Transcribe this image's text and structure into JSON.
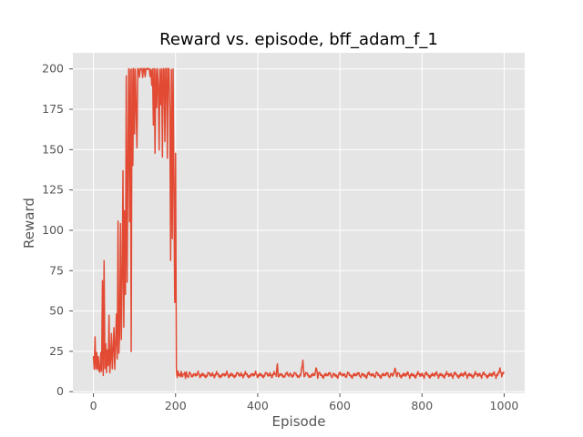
{
  "chart_data": {
    "type": "line",
    "title": "Reward vs. episode, bff_adam_f_1",
    "xlabel": "Episode",
    "ylabel": "Reward",
    "xlim": [
      -50,
      1050
    ],
    "ylim": [
      -1,
      210
    ],
    "grid": true,
    "x_ticks": [
      0,
      200,
      400,
      600,
      800,
      1000
    ],
    "y_ticks": [
      0,
      25,
      50,
      75,
      100,
      125,
      150,
      175,
      200
    ],
    "colors": {
      "line": "#E24A33",
      "plot_background": "#E5E5E5",
      "grid": "#FFFFFF",
      "tick_text": "#555555"
    },
    "series": [
      {
        "x_range": [
          0,
          999
        ],
        "keypoints": [
          [
            0,
            22
          ],
          [
            2,
            14
          ],
          [
            4,
            34
          ],
          [
            6,
            14
          ],
          [
            8,
            24
          ],
          [
            10,
            14
          ],
          [
            12,
            22
          ],
          [
            14,
            13
          ],
          [
            16,
            12
          ],
          [
            18,
            24
          ],
          [
            20,
            13
          ],
          [
            22,
            69
          ],
          [
            24,
            10
          ],
          [
            26,
            81
          ],
          [
            28,
            14
          ],
          [
            30,
            30
          ],
          [
            32,
            12
          ],
          [
            34,
            26
          ],
          [
            36,
            16
          ],
          [
            38,
            47
          ],
          [
            40,
            12
          ],
          [
            42,
            20
          ],
          [
            44,
            36
          ],
          [
            46,
            14
          ],
          [
            48,
            26
          ],
          [
            50,
            40
          ],
          [
            52,
            14
          ],
          [
            54,
            30
          ],
          [
            56,
            48
          ],
          [
            58,
            20
          ],
          [
            60,
            106
          ],
          [
            62,
            24
          ],
          [
            64,
            36
          ],
          [
            66,
            104
          ],
          [
            68,
            32
          ],
          [
            70,
            70
          ],
          [
            72,
            137
          ],
          [
            74,
            40
          ],
          [
            76,
            112
          ],
          [
            78,
            60
          ],
          [
            80,
            196
          ],
          [
            82,
            68
          ],
          [
            84,
            140
          ],
          [
            86,
            200
          ],
          [
            88,
            105
          ],
          [
            90,
            200
          ],
          [
            92,
            25
          ],
          [
            94,
            200
          ],
          [
            96,
            140
          ],
          [
            98,
            200
          ],
          [
            100,
            160
          ],
          [
            102,
            200
          ],
          [
            104,
            175
          ],
          [
            106,
            151
          ],
          [
            108,
            200
          ],
          [
            110,
            200
          ],
          [
            112,
            195
          ],
          [
            114,
            200
          ],
          [
            116,
            200
          ],
          [
            118,
            200
          ],
          [
            120,
            195
          ],
          [
            122,
            200
          ],
          [
            124,
            200
          ],
          [
            126,
            195
          ],
          [
            128,
            200
          ],
          [
            130,
            200
          ],
          [
            132,
            200
          ],
          [
            134,
            200
          ],
          [
            136,
            200
          ],
          [
            138,
            195
          ],
          [
            140,
            200
          ],
          [
            142,
            190
          ],
          [
            144,
            200
          ],
          [
            146,
            165
          ],
          [
            148,
            200
          ],
          [
            150,
            148
          ],
          [
            152,
            200
          ],
          [
            154,
            176
          ],
          [
            156,
            200
          ],
          [
            158,
            190
          ],
          [
            160,
            150
          ],
          [
            162,
            200
          ],
          [
            164,
            178
          ],
          [
            166,
            200
          ],
          [
            168,
            145
          ],
          [
            170,
            200
          ],
          [
            172,
            200
          ],
          [
            174,
            155
          ],
          [
            176,
            200
          ],
          [
            178,
            200
          ],
          [
            180,
            145
          ],
          [
            182,
            200
          ],
          [
            184,
            200
          ],
          [
            186,
            175
          ],
          [
            188,
            81
          ],
          [
            190,
            200
          ],
          [
            192,
            95
          ],
          [
            194,
            200
          ],
          [
            196,
            130
          ],
          [
            198,
            55
          ],
          [
            200,
            148
          ],
          [
            202,
            14
          ],
          [
            204,
            9
          ],
          [
            206,
            12
          ],
          [
            208,
            10
          ],
          [
            210,
            11
          ],
          [
            212,
            9
          ],
          [
            214,
            13
          ],
          [
            216,
            9
          ],
          [
            218,
            11
          ],
          [
            220,
            10
          ],
          [
            222,
            12
          ],
          [
            224,
            9
          ],
          [
            226,
            12
          ],
          [
            228,
            10
          ],
          [
            230,
            9
          ],
          [
            235,
            12
          ],
          [
            240,
            9
          ],
          [
            245,
            11
          ],
          [
            250,
            10
          ],
          [
            255,
            12
          ],
          [
            260,
            9
          ],
          [
            265,
            11
          ],
          [
            270,
            10
          ],
          [
            275,
            9
          ],
          [
            280,
            12
          ],
          [
            285,
            10
          ],
          [
            290,
            11
          ],
          [
            295,
            9
          ],
          [
            300,
            12
          ],
          [
            305,
            10
          ],
          [
            310,
            9
          ],
          [
            315,
            11
          ],
          [
            320,
            10
          ],
          [
            325,
            12
          ],
          [
            330,
            9
          ],
          [
            335,
            11
          ],
          [
            340,
            10
          ],
          [
            345,
            9
          ],
          [
            350,
            12
          ],
          [
            355,
            10
          ],
          [
            360,
            11
          ],
          [
            365,
            9
          ],
          [
            370,
            12
          ],
          [
            375,
            10
          ],
          [
            380,
            9
          ],
          [
            385,
            11
          ],
          [
            390,
            10
          ],
          [
            395,
            12
          ],
          [
            400,
            9
          ],
          [
            405,
            11
          ],
          [
            410,
            10
          ],
          [
            415,
            9
          ],
          [
            420,
            12
          ],
          [
            425,
            10
          ],
          [
            430,
            11
          ],
          [
            435,
            9
          ],
          [
            440,
            12
          ],
          [
            445,
            10
          ],
          [
            448,
            18
          ],
          [
            450,
            9
          ],
          [
            455,
            11
          ],
          [
            460,
            10
          ],
          [
            465,
            9
          ],
          [
            470,
            12
          ],
          [
            475,
            10
          ],
          [
            480,
            11
          ],
          [
            485,
            9
          ],
          [
            490,
            12
          ],
          [
            495,
            10
          ],
          [
            500,
            9
          ],
          [
            505,
            11
          ],
          [
            510,
            19
          ],
          [
            513,
            9
          ],
          [
            518,
            12
          ],
          [
            523,
            10
          ],
          [
            528,
            9
          ],
          [
            533,
            11
          ],
          [
            538,
            10
          ],
          [
            543,
            15
          ],
          [
            546,
            9
          ],
          [
            550,
            12
          ],
          [
            555,
            10
          ],
          [
            560,
            9
          ],
          [
            565,
            11
          ],
          [
            570,
            10
          ],
          [
            575,
            12
          ],
          [
            580,
            9
          ],
          [
            585,
            11
          ],
          [
            590,
            10
          ],
          [
            595,
            9
          ],
          [
            600,
            12
          ],
          [
            605,
            10
          ],
          [
            610,
            11
          ],
          [
            615,
            9
          ],
          [
            620,
            12
          ],
          [
            625,
            10
          ],
          [
            630,
            9
          ],
          [
            635,
            11
          ],
          [
            640,
            10
          ],
          [
            645,
            12
          ],
          [
            650,
            9
          ],
          [
            655,
            11
          ],
          [
            660,
            10
          ],
          [
            665,
            9
          ],
          [
            670,
            12
          ],
          [
            675,
            10
          ],
          [
            680,
            11
          ],
          [
            685,
            9
          ],
          [
            690,
            12
          ],
          [
            695,
            10
          ],
          [
            700,
            9
          ],
          [
            705,
            11
          ],
          [
            710,
            10
          ],
          [
            715,
            12
          ],
          [
            720,
            9
          ],
          [
            725,
            11
          ],
          [
            730,
            10
          ],
          [
            735,
            15
          ],
          [
            738,
            9
          ],
          [
            742,
            12
          ],
          [
            746,
            10
          ],
          [
            750,
            9
          ],
          [
            755,
            11
          ],
          [
            760,
            10
          ],
          [
            765,
            12
          ],
          [
            770,
            9
          ],
          [
            775,
            11
          ],
          [
            780,
            10
          ],
          [
            785,
            9
          ],
          [
            790,
            12
          ],
          [
            795,
            10
          ],
          [
            800,
            11
          ],
          [
            805,
            9
          ],
          [
            810,
            12
          ],
          [
            815,
            10
          ],
          [
            820,
            9
          ],
          [
            825,
            11
          ],
          [
            830,
            10
          ],
          [
            835,
            12
          ],
          [
            840,
            9
          ],
          [
            845,
            11
          ],
          [
            850,
            10
          ],
          [
            855,
            9
          ],
          [
            860,
            12
          ],
          [
            865,
            10
          ],
          [
            870,
            11
          ],
          [
            875,
            9
          ],
          [
            880,
            12
          ],
          [
            885,
            10
          ],
          [
            890,
            9
          ],
          [
            895,
            11
          ],
          [
            900,
            10
          ],
          [
            905,
            12
          ],
          [
            910,
            9
          ],
          [
            915,
            11
          ],
          [
            920,
            10
          ],
          [
            925,
            9
          ],
          [
            930,
            12
          ],
          [
            935,
            10
          ],
          [
            940,
            11
          ],
          [
            945,
            9
          ],
          [
            950,
            12
          ],
          [
            955,
            10
          ],
          [
            960,
            9
          ],
          [
            965,
            11
          ],
          [
            970,
            10
          ],
          [
            975,
            12
          ],
          [
            980,
            9
          ],
          [
            985,
            11
          ],
          [
            990,
            14
          ],
          [
            994,
            10
          ],
          [
            999,
            12
          ]
        ]
      }
    ]
  }
}
